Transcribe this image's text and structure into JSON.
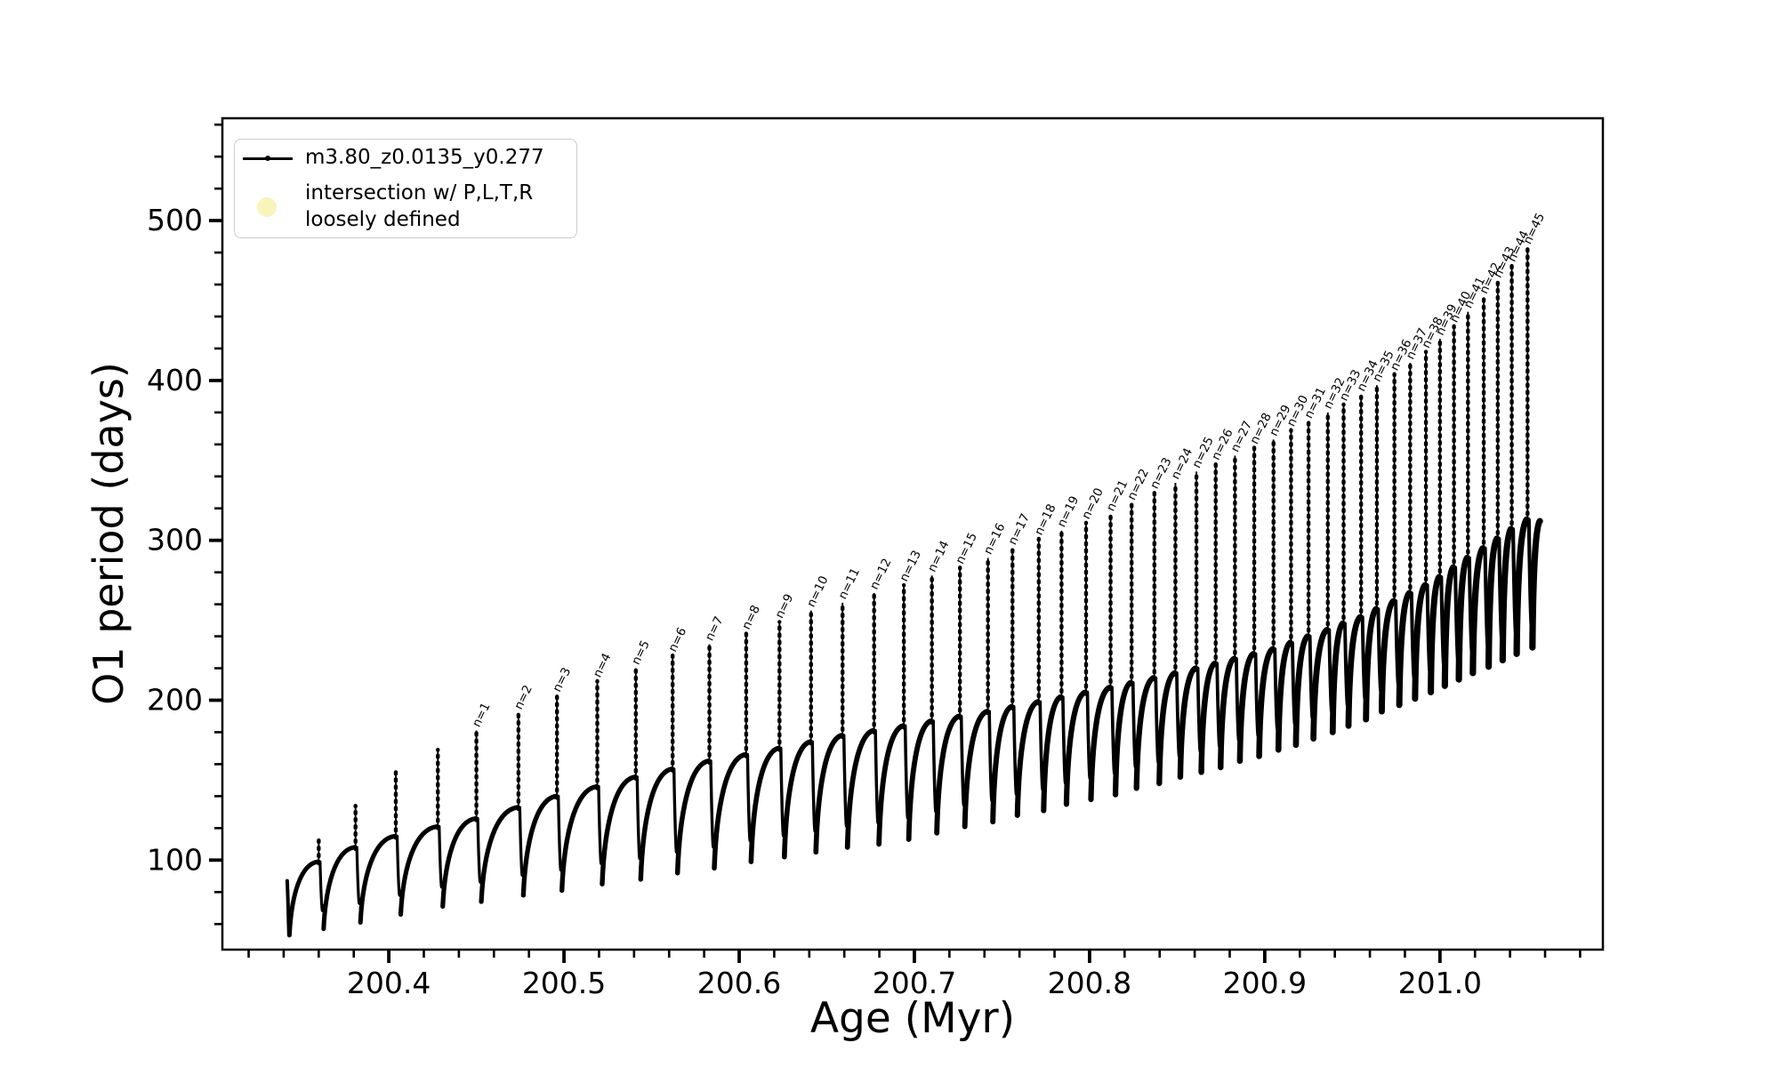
{
  "colors": {
    "series": "#000000",
    "intersection_marker": "#f8f4bc",
    "legend_border": "#cccccc",
    "background": "#ffffff",
    "text": "#000000"
  },
  "legend": {
    "items": [
      {
        "label": "m3.80_z0.0135_y0.277"
      },
      {
        "label_line1": "intersection w/ P,L,T,R",
        "label_line2": "loosely defined"
      }
    ]
  },
  "chart_data": {
    "type": "line",
    "series_label": "m3.80_z0.0135_y0.277",
    "xlabel": "Age (Myr)",
    "ylabel": "O1 period (days)",
    "xlim": [
      200.305,
      201.093
    ],
    "ylim": [
      44,
      564
    ],
    "x_ticks": [
      200.4,
      200.5,
      200.6,
      200.7,
      200.8,
      200.9,
      201.0
    ],
    "x_tick_labels": [
      "200.4",
      "200.5",
      "200.6",
      "200.7",
      "200.8",
      "200.9",
      "201.0"
    ],
    "x_minor_step": 0.02,
    "y_ticks": [
      100,
      200,
      300,
      400,
      500
    ],
    "y_tick_labels": [
      "100",
      "200",
      "300",
      "400",
      "500"
    ],
    "y_minor_step": 20,
    "grid": false,
    "legend_position": "upper-left",
    "track_start": {
      "age": 200.342,
      "value": 87,
      "drop_to": 53
    },
    "track_end": {
      "age": 201.057,
      "value": 312
    },
    "min_offset_myr": 0.0026,
    "cycles": [
      {
        "n": null,
        "label": null,
        "age": 200.36,
        "peak": 113,
        "plateau": 99,
        "min_after": 57
      },
      {
        "n": null,
        "label": null,
        "age": 200.381,
        "peak": 134,
        "plateau": 108,
        "min_after": 61
      },
      {
        "n": null,
        "label": null,
        "age": 200.404,
        "peak": 155,
        "plateau": 115,
        "min_after": 66
      },
      {
        "n": null,
        "label": null,
        "age": 200.428,
        "peak": 169,
        "plateau": 121,
        "min_after": 71
      },
      {
        "n": 1,
        "label": "n=1",
        "age": 200.45,
        "peak": 181,
        "plateau": 126,
        "min_after": 74
      },
      {
        "n": 2,
        "label": "n=2",
        "age": 200.474,
        "peak": 192,
        "plateau": 133,
        "min_after": 78
      },
      {
        "n": 3,
        "label": "n=3",
        "age": 200.496,
        "peak": 203,
        "plateau": 140,
        "min_after": 81
      },
      {
        "n": 4,
        "label": "n=4",
        "age": 200.519,
        "peak": 212,
        "plateau": 146,
        "min_after": 85
      },
      {
        "n": 5,
        "label": "n=5",
        "age": 200.541,
        "peak": 220,
        "plateau": 152,
        "min_after": 88
      },
      {
        "n": 6,
        "label": "n=6",
        "age": 200.562,
        "peak": 228,
        "plateau": 157,
        "min_after": 92
      },
      {
        "n": 7,
        "label": "n=7",
        "age": 200.583,
        "peak": 235,
        "plateau": 162,
        "min_after": 95
      },
      {
        "n": 8,
        "label": "n=8",
        "age": 200.604,
        "peak": 242,
        "plateau": 166,
        "min_after": 99
      },
      {
        "n": 9,
        "label": "n=9",
        "age": 200.623,
        "peak": 249,
        "plateau": 170,
        "min_after": 102
      },
      {
        "n": 10,
        "label": "n=10",
        "age": 200.641,
        "peak": 256,
        "plateau": 174,
        "min_after": 105
      },
      {
        "n": 11,
        "label": "n=11",
        "age": 200.659,
        "peak": 261,
        "plateau": 178,
        "min_after": 108
      },
      {
        "n": 12,
        "label": "n=12",
        "age": 200.677,
        "peak": 267,
        "plateau": 181,
        "min_after": 110
      },
      {
        "n": 13,
        "label": "n=13",
        "age": 200.694,
        "peak": 272,
        "plateau": 184,
        "min_after": 113
      },
      {
        "n": 14,
        "label": "n=14",
        "age": 200.71,
        "peak": 278,
        "plateau": 187,
        "min_after": 117
      },
      {
        "n": 15,
        "label": "n=15",
        "age": 200.726,
        "peak": 283,
        "plateau": 190,
        "min_after": 121
      },
      {
        "n": 16,
        "label": "n=16",
        "age": 200.742,
        "peak": 289,
        "plateau": 193,
        "min_after": 124
      },
      {
        "n": 17,
        "label": "n=17",
        "age": 200.756,
        "peak": 295,
        "plateau": 196,
        "min_after": 128
      },
      {
        "n": 18,
        "label": "n=18",
        "age": 200.771,
        "peak": 301,
        "plateau": 199,
        "min_after": 131
      },
      {
        "n": 19,
        "label": "n=19",
        "age": 200.784,
        "peak": 306,
        "plateau": 202,
        "min_after": 135
      },
      {
        "n": 20,
        "label": "n=20",
        "age": 200.798,
        "peak": 311,
        "plateau": 205,
        "min_after": 138
      },
      {
        "n": 21,
        "label": "n=21",
        "age": 200.812,
        "peak": 316,
        "plateau": 208,
        "min_after": 141
      },
      {
        "n": 22,
        "label": "n=22",
        "age": 200.824,
        "peak": 323,
        "plateau": 211,
        "min_after": 145
      },
      {
        "n": 23,
        "label": "n=23",
        "age": 200.837,
        "peak": 330,
        "plateau": 214,
        "min_after": 148
      },
      {
        "n": 24,
        "label": "n=24",
        "age": 200.849,
        "peak": 336,
        "plateau": 217,
        "min_after": 152
      },
      {
        "n": 25,
        "label": "n=25",
        "age": 200.861,
        "peak": 343,
        "plateau": 220,
        "min_after": 155
      },
      {
        "n": 26,
        "label": "n=26",
        "age": 200.872,
        "peak": 348,
        "plateau": 223,
        "min_after": 158
      },
      {
        "n": 27,
        "label": "n=27",
        "age": 200.883,
        "peak": 353,
        "plateau": 226,
        "min_after": 162
      },
      {
        "n": 28,
        "label": "n=28",
        "age": 200.894,
        "peak": 358,
        "plateau": 229,
        "min_after": 165
      },
      {
        "n": 29,
        "label": "n=29",
        "age": 200.905,
        "peak": 363,
        "plateau": 232,
        "min_after": 169
      },
      {
        "n": 30,
        "label": "n=30",
        "age": 200.915,
        "peak": 369,
        "plateau": 236,
        "min_after": 172
      },
      {
        "n": 31,
        "label": "n=31",
        "age": 200.925,
        "peak": 374,
        "plateau": 240,
        "min_after": 176
      },
      {
        "n": 32,
        "label": "n=32",
        "age": 200.936,
        "peak": 380,
        "plateau": 244,
        "min_after": 180
      },
      {
        "n": 33,
        "label": "n=33",
        "age": 200.945,
        "peak": 385,
        "plateau": 248,
        "min_after": 184
      },
      {
        "n": 34,
        "label": "n=34",
        "age": 200.955,
        "peak": 391,
        "plateau": 252,
        "min_after": 188
      },
      {
        "n": 35,
        "label": "n=35",
        "age": 200.964,
        "peak": 397,
        "plateau": 257,
        "min_after": 193
      },
      {
        "n": 36,
        "label": "n=36",
        "age": 200.974,
        "peak": 404,
        "plateau": 262,
        "min_after": 197
      },
      {
        "n": 37,
        "label": "n=37",
        "age": 200.983,
        "peak": 411,
        "plateau": 267,
        "min_after": 201
      },
      {
        "n": 38,
        "label": "n=38",
        "age": 200.992,
        "peak": 418,
        "plateau": 272,
        "min_after": 205
      },
      {
        "n": 39,
        "label": "n=39",
        "age": 201.0,
        "peak": 426,
        "plateau": 277,
        "min_after": 209
      },
      {
        "n": 40,
        "label": "n=40",
        "age": 201.008,
        "peak": 434,
        "plateau": 283,
        "min_after": 213
      },
      {
        "n": 41,
        "label": "n=41",
        "age": 201.016,
        "peak": 443,
        "plateau": 289,
        "min_after": 217
      },
      {
        "n": 42,
        "label": "n=42",
        "age": 201.025,
        "peak": 452,
        "plateau": 295,
        "min_after": 221
      },
      {
        "n": 43,
        "label": "n=43",
        "age": 201.033,
        "peak": 462,
        "plateau": 301,
        "min_after": 225
      },
      {
        "n": 44,
        "label": "n=44",
        "age": 201.041,
        "peak": 472,
        "plateau": 307,
        "min_after": 229
      },
      {
        "n": 45,
        "label": "n=45",
        "age": 201.05,
        "peak": 483,
        "plateau": 313,
        "min_after": 233
      }
    ]
  }
}
